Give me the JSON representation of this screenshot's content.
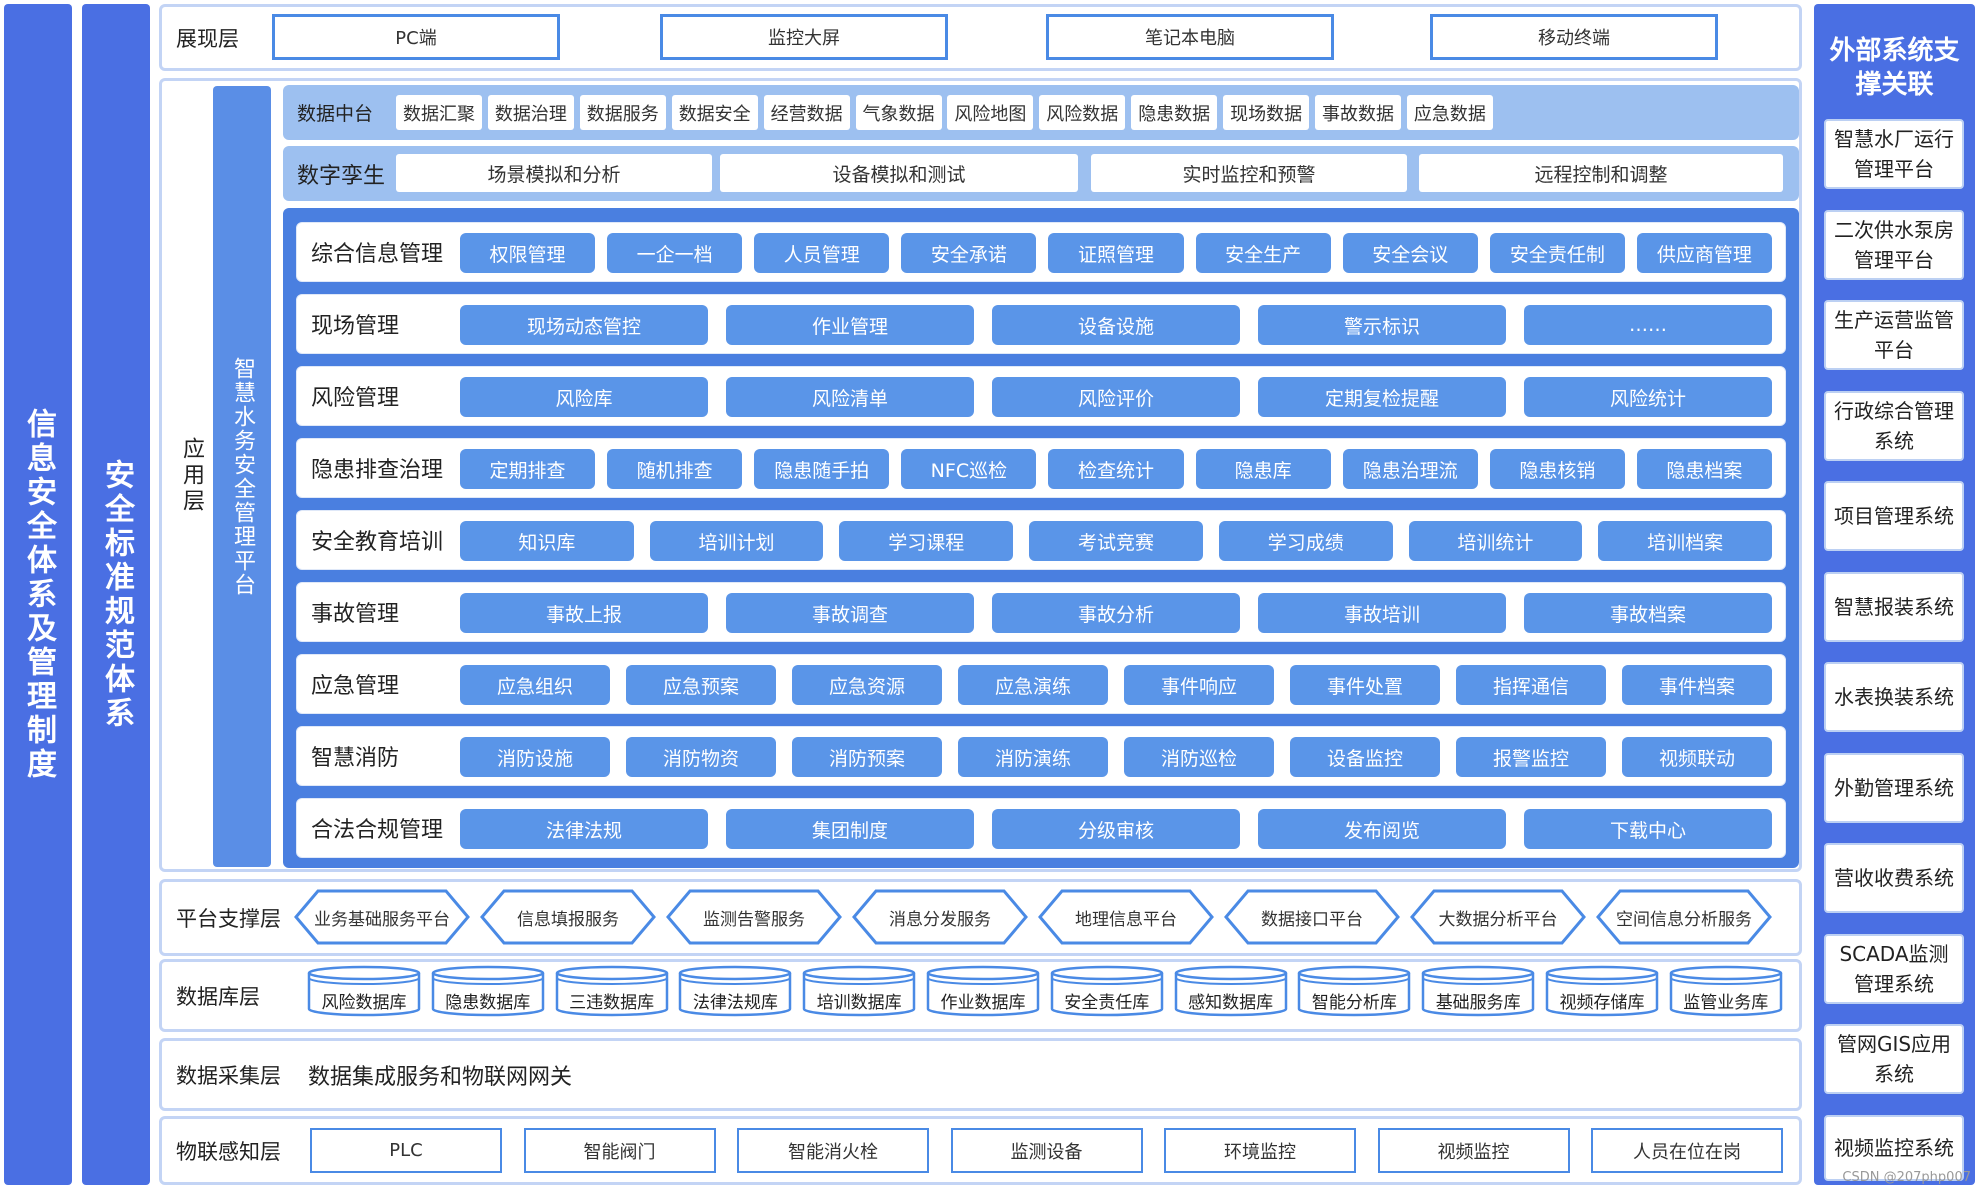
{
  "left_bars": {
    "info_security": "信息安全体系及管理制度",
    "safety_standard": "安全标准规范体系"
  },
  "presentation": {
    "label": "展现层",
    "items": [
      "PC端",
      "监控大屏",
      "笔记本电脑",
      "移动终端"
    ]
  },
  "app_layer": {
    "label": "应用层",
    "platform_name": "智慧水务安全管理平台",
    "data_center": {
      "label": "数据中台",
      "items": [
        "数据汇聚",
        "数据治理",
        "数据服务",
        "数据安全",
        "经营数据",
        "气象数据",
        "风险地图",
        "风险数据",
        "隐患数据",
        "现场数据",
        "事故数据",
        "应急数据"
      ]
    },
    "digital_twin": {
      "label": "数字孪生",
      "items": [
        "场景模拟和分析",
        "设备模拟和测试",
        "实时监控和预警",
        "远程控制和调整"
      ]
    },
    "modules": [
      {
        "label": "综合信息管理",
        "items": [
          "权限管理",
          "一企一档",
          "人员管理",
          "安全承诺",
          "证照管理",
          "安全生产",
          "安全会议",
          "安全责任制",
          "供应商管理"
        ]
      },
      {
        "label": "现场管理",
        "items": [
          "现场动态管控",
          "作业管理",
          "设备设施",
          "警示标识",
          "……"
        ]
      },
      {
        "label": "风险管理",
        "items": [
          "风险库",
          "风险清单",
          "风险评价",
          "定期复检提醒",
          "风险统计"
        ]
      },
      {
        "label": "隐患排查治理",
        "items": [
          "定期排查",
          "随机排查",
          "隐患随手拍",
          "NFC巡检",
          "检查统计",
          "隐患库",
          "隐患治理流",
          "隐患核销",
          "隐患档案"
        ]
      },
      {
        "label": "安全教育培训",
        "items": [
          "知识库",
          "培训计划",
          "学习课程",
          "考试竞赛",
          "学习成绩",
          "培训统计",
          "培训档案"
        ]
      },
      {
        "label": "事故管理",
        "items": [
          "事故上报",
          "事故调查",
          "事故分析",
          "事故培训",
          "事故档案"
        ]
      },
      {
        "label": "应急管理",
        "items": [
          "应急组织",
          "应急预案",
          "应急资源",
          "应急演练",
          "事件响应",
          "事件处置",
          "指挥通信",
          "事件档案"
        ]
      },
      {
        "label": "智慧消防",
        "items": [
          "消防设施",
          "消防物资",
          "消防预案",
          "消防演练",
          "消防巡检",
          "设备监控",
          "报警监控",
          "视频联动"
        ]
      },
      {
        "label": "合法合规管理",
        "items": [
          "法律法规",
          "集团制度",
          "分级审核",
          "发布阅览",
          "下载中心"
        ]
      }
    ]
  },
  "platform_support": {
    "label": "平台支撑层",
    "items": [
      "业务基础服务平台",
      "信息填报服务",
      "监测告警服务",
      "消息分发服务",
      "地理信息平台",
      "数据接口平台",
      "大数据分析平台",
      "空间信息分析服务"
    ]
  },
  "database": {
    "label": "数据库层",
    "items": [
      "风险数据库",
      "隐患数据库",
      "三违数据库",
      "法律法规库",
      "培训数据库",
      "作业数据库",
      "安全责任库",
      "感知数据库",
      "智能分析库",
      "基础服务库",
      "视频存储库",
      "监管业务库"
    ]
  },
  "collection": {
    "label": "数据采集层",
    "text": "数据集成服务和物联网网关"
  },
  "iot": {
    "label": "物联感知层",
    "items": [
      "PLC",
      "智能阀门",
      "智能消火栓",
      "监测设备",
      "环境监控",
      "视频监控",
      "人员在位在岗"
    ]
  },
  "external": {
    "title": "外部系统支撑关联",
    "items": [
      "智慧水厂运行管理平台",
      "二次供水泵房管理平台",
      "生产运营监管平台",
      "行政综合管理系统",
      "项目管理系统",
      "智慧报装系统",
      "水表换装系统",
      "外勤管理系统",
      "营收收费系统",
      "SCADA监测管理系统",
      "管网GIS应用系统",
      "视频监控系统"
    ]
  },
  "watermark": "CSDN @207php007",
  "colors": {
    "primary": "#4a6fe3",
    "button": "#5a95e8",
    "light": "#c3d4f5"
  }
}
